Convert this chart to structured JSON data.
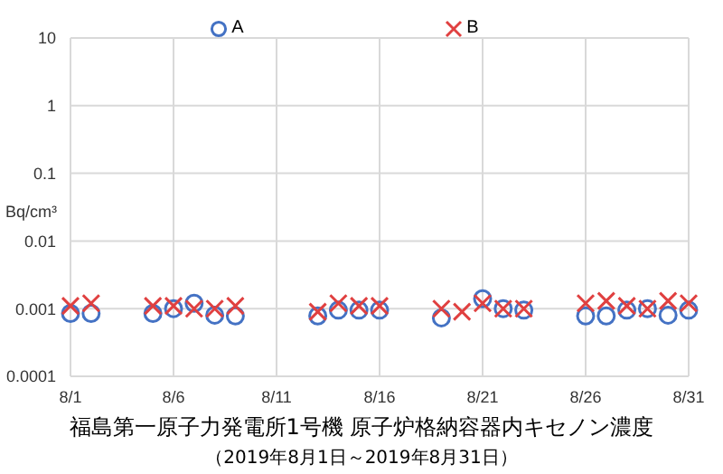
{
  "chart_data": {
    "type": "scatter",
    "title": "福島第一原子力発電所1号機 原子炉格納容器内キセノン濃度",
    "subtitle": "（2019年8月1日～2019年8月31日）",
    "ylabel": "Bq/cm³",
    "x": [
      "2019-08-01",
      "2019-08-02",
      "2019-08-05",
      "2019-08-06",
      "2019-08-07",
      "2019-08-08",
      "2019-08-09",
      "2019-08-13",
      "2019-08-14",
      "2019-08-15",
      "2019-08-16",
      "2019-08-19",
      "2019-08-20",
      "2019-08-21",
      "2019-08-22",
      "2019-08-23",
      "2019-08-26",
      "2019-08-27",
      "2019-08-28",
      "2019-08-29",
      "2019-08-30",
      "2019-08-31"
    ],
    "series": [
      {
        "name": "A",
        "color": "#4472c4",
        "marker": "circle",
        "values": [
          0.00085,
          0.00085,
          0.00085,
          0.001,
          0.0012,
          0.0008,
          0.00078,
          0.00078,
          0.00095,
          0.00095,
          0.00095,
          0.00073,
          null,
          0.0014,
          0.001,
          0.00095,
          0.00078,
          0.00078,
          0.00095,
          0.001,
          0.0008,
          0.00095
        ]
      },
      {
        "name": "B",
        "color": "#e04040",
        "marker": "cross",
        "values": [
          0.0011,
          0.0012,
          0.0011,
          0.0011,
          0.001,
          0.001,
          0.0011,
          0.0009,
          0.0012,
          0.0011,
          0.0011,
          0.001,
          0.0009,
          0.0012,
          0.001,
          0.001,
          0.0012,
          0.0013,
          0.0011,
          0.001,
          0.0013,
          0.0012
        ]
      }
    ],
    "xlim": [
      "2019-08-01",
      "2019-08-31"
    ],
    "xticks": [
      {
        "value": "2019-08-01",
        "label": "8/1"
      },
      {
        "value": "2019-08-06",
        "label": "8/6"
      },
      {
        "value": "2019-08-11",
        "label": "8/11"
      },
      {
        "value": "2019-08-16",
        "label": "8/16"
      },
      {
        "value": "2019-08-21",
        "label": "8/21"
      },
      {
        "value": "2019-08-26",
        "label": "8/26"
      },
      {
        "value": "2019-08-31",
        "label": "8/31"
      }
    ],
    "ylim": [
      0.0001,
      10
    ],
    "yticks": [
      0.0001,
      0.001,
      0.01,
      0.1,
      1,
      10
    ],
    "log": true,
    "grid": true,
    "legend": "top"
  }
}
